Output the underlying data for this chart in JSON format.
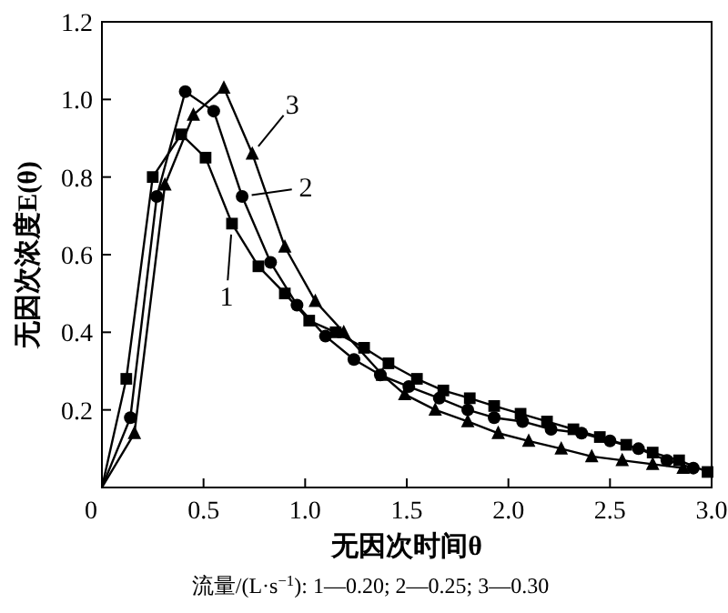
{
  "chart_data": {
    "type": "line",
    "xlabel": "无因次时间θ",
    "ylabel": "无因次浓度E(θ)",
    "xlim": [
      0,
      3.0
    ],
    "ylim": [
      0,
      1.2
    ],
    "xticks": [
      {
        "value": 0,
        "label": "0"
      },
      0.5,
      {
        "value": 1,
        "label": "1.0"
      },
      1.5,
      {
        "value": 2,
        "label": "2.0"
      },
      2.5,
      {
        "value": 3,
        "label": "3.0"
      }
    ],
    "yticks": [
      {
        "value": 0,
        "label": null
      },
      0.2,
      0.4,
      0.6,
      0.8,
      {
        "value": 1,
        "label": "1.0"
      },
      1.2
    ],
    "grid": false,
    "line_style": "solid",
    "series": [
      {
        "name": "1",
        "color": "#000000",
        "marker": "square",
        "x": [
          0,
          0.12,
          0.25,
          0.39,
          0.51,
          0.64,
          0.77,
          0.9,
          1.02,
          1.15,
          1.29,
          1.41,
          1.55,
          1.68,
          1.81,
          1.93,
          2.06,
          2.19,
          2.32,
          2.45,
          2.58,
          2.71,
          2.84,
          2.98
        ],
        "values": [
          0,
          0.28,
          0.8,
          0.91,
          0.85,
          0.68,
          0.57,
          0.5,
          0.43,
          0.4,
          0.36,
          0.32,
          0.28,
          0.25,
          0.23,
          0.21,
          0.19,
          0.17,
          0.15,
          0.13,
          0.11,
          0.09,
          0.07,
          0.04
        ]
      },
      {
        "name": "2",
        "color": "#000000",
        "marker": "circle",
        "x": [
          0,
          0.14,
          0.27,
          0.41,
          0.55,
          0.69,
          0.83,
          0.96,
          1.1,
          1.24,
          1.37,
          1.51,
          1.66,
          1.8,
          1.93,
          2.07,
          2.21,
          2.36,
          2.5,
          2.64,
          2.78,
          2.91
        ],
        "values": [
          0,
          0.18,
          0.75,
          1.02,
          0.97,
          0.75,
          0.58,
          0.47,
          0.39,
          0.33,
          0.29,
          0.26,
          0.23,
          0.2,
          0.18,
          0.17,
          0.15,
          0.14,
          0.12,
          0.1,
          0.07,
          0.05
        ]
      },
      {
        "name": "3",
        "color": "#000000",
        "marker": "triangle",
        "x": [
          0,
          0.16,
          0.31,
          0.45,
          0.6,
          0.74,
          0.9,
          1.05,
          1.19,
          1.38,
          1.49,
          1.64,
          1.8,
          1.95,
          2.1,
          2.26,
          2.41,
          2.56,
          2.71,
          2.86
        ],
        "values": [
          0,
          0.14,
          0.78,
          0.96,
          1.03,
          0.86,
          0.62,
          0.48,
          0.4,
          0.29,
          0.24,
          0.2,
          0.17,
          0.14,
          0.12,
          0.1,
          0.08,
          0.07,
          0.06,
          0.05
        ]
      }
    ],
    "annotations": [
      "流量/(L·s$^{−1}$): 1—0.20; 2—0.25; 3—0.30"
    ]
  }
}
